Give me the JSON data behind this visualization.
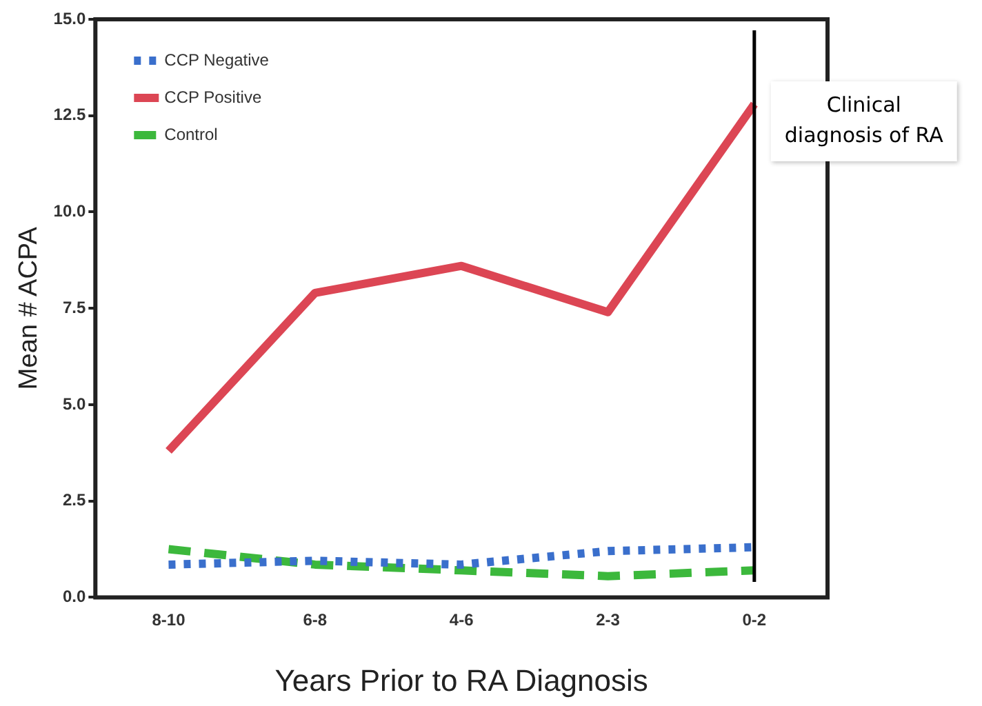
{
  "chart_data": {
    "type": "line",
    "xlabel": "Years Prior to RA Diagnosis",
    "ylabel": "Mean # ACPA",
    "categories": [
      "8-10",
      "6-8",
      "4-6",
      "2-3",
      "0-2"
    ],
    "series": [
      {
        "name": "CCP Negative",
        "color": "#3a6fcc",
        "line_style": "dotted",
        "values": [
          0.85,
          0.95,
          0.85,
          1.2,
          1.3
        ]
      },
      {
        "name": "CCP Positive",
        "color": "#dc4654",
        "line_style": "solid",
        "values": [
          3.8,
          7.9,
          8.6,
          7.4,
          12.8
        ]
      },
      {
        "name": "Control",
        "color": "#3cb83c",
        "line_style": "dashed",
        "values": [
          1.25,
          0.85,
          0.7,
          0.55,
          0.7
        ]
      }
    ],
    "ylim": [
      0,
      15
    ],
    "yticks": [
      {
        "value": 0,
        "label": "0.0"
      },
      {
        "value": 2.5,
        "label": "2.5"
      },
      {
        "value": 5,
        "label": "5.0"
      },
      {
        "value": 7.5,
        "label": "7.5"
      },
      {
        "value": 10,
        "label": "10.0"
      },
      {
        "value": 12.5,
        "label": "12.5"
      },
      {
        "value": 15,
        "label": "15.0"
      }
    ],
    "ref_lines": [
      {
        "axis": "x",
        "value": "0-2",
        "label": "Clinical diagnosis of RA",
        "color": "#000000"
      }
    ],
    "legend": "top left",
    "marker": "none",
    "grid": false
  }
}
